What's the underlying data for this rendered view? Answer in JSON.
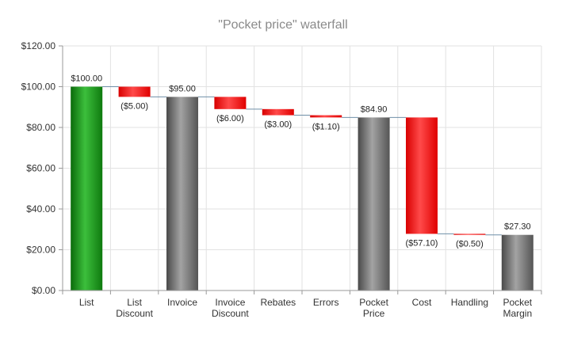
{
  "colors": {
    "increase": "#1f8f1f",
    "decrease": "#ff2020",
    "total": "#777777"
  },
  "chart_data": {
    "type": "bar",
    "subtype": "waterfall",
    "title": "\"Pocket price\" waterfall",
    "xlabel": "",
    "ylabel": "",
    "ylim": [
      0,
      120
    ],
    "yticks": [
      0,
      20,
      40,
      60,
      80,
      100,
      120
    ],
    "ytick_labels": [
      "$0.00",
      "$20.00",
      "$40.00",
      "$60.00",
      "$80.00",
      "$100.00",
      "$120.00"
    ],
    "grid": true,
    "bars": [
      {
        "category": [
          "List"
        ],
        "kind": "start",
        "base": 0,
        "top": 100.0,
        "label": "$100.00"
      },
      {
        "category": [
          "List",
          "Discount"
        ],
        "kind": "decrease",
        "base": 95.0,
        "top": 100.0,
        "label": "($5.00)"
      },
      {
        "category": [
          "Invoice"
        ],
        "kind": "total",
        "base": 0,
        "top": 95.0,
        "label": "$95.00"
      },
      {
        "category": [
          "Invoice",
          "Discount"
        ],
        "kind": "decrease",
        "base": 89.0,
        "top": 95.0,
        "label": "($6.00)"
      },
      {
        "category": [
          "Rebates"
        ],
        "kind": "decrease",
        "base": 86.0,
        "top": 89.0,
        "label": "($3.00)"
      },
      {
        "category": [
          "Errors"
        ],
        "kind": "decrease",
        "base": 84.9,
        "top": 86.0,
        "label": "($1.10)"
      },
      {
        "category": [
          "Pocket",
          "Price"
        ],
        "kind": "total",
        "base": 0,
        "top": 84.9,
        "label": "$84.90"
      },
      {
        "category": [
          "Cost"
        ],
        "kind": "decrease",
        "base": 27.8,
        "top": 84.9,
        "label": "($57.10)"
      },
      {
        "category": [
          "Handling"
        ],
        "kind": "decrease",
        "base": 27.3,
        "top": 27.8,
        "label": "($0.50)"
      },
      {
        "category": [
          "Pocket",
          "Margin"
        ],
        "kind": "total",
        "base": 0,
        "top": 27.3,
        "label": "$27.30"
      }
    ]
  }
}
